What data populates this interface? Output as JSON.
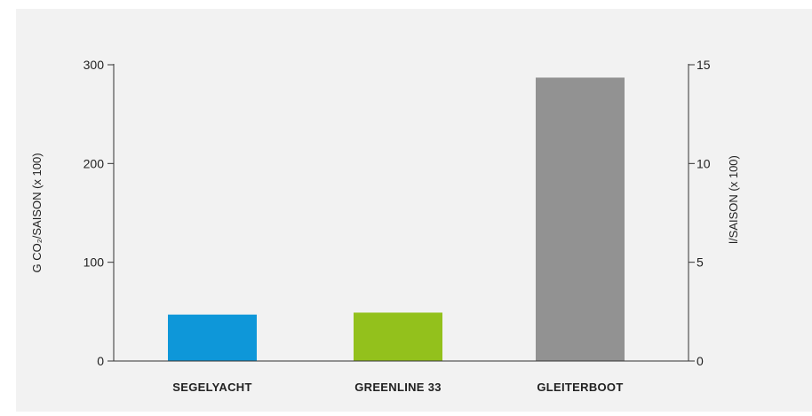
{
  "chart_data": {
    "type": "bar",
    "title": "",
    "categories": [
      "SEGELYACHT",
      "GREENLINE 33",
      "GLEITERBOOT"
    ],
    "values": [
      47,
      49,
      287
    ],
    "colors": [
      "#0e97d9",
      "#93c11c",
      "#929292"
    ],
    "ylabel_left": "G CO₂/SAISON (x 100)",
    "ylabel_right": "l/SAISON (x 100)",
    "ylim_left": [
      0,
      300
    ],
    "ylim_right": [
      0,
      15
    ],
    "yticks_left": [
      "0",
      "100",
      "200",
      "300"
    ],
    "yticks_right": [
      "0",
      "5",
      "10",
      "15"
    ],
    "grid": false,
    "legend": "none"
  }
}
